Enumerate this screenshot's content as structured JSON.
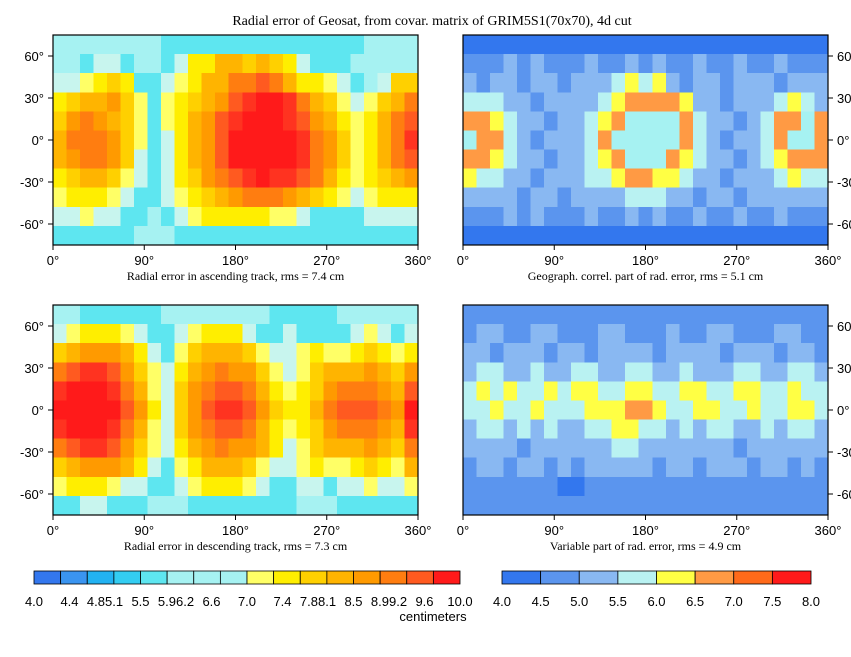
{
  "title": "Radial error of Geosat, from covar. matrix of GRIM5S1(70x70), 4d cut",
  "chart_data": [
    {
      "type": "heatmap",
      "caption": "Radial error in ascending track, rms = 7.4 cm",
      "scale": "A",
      "xlim": [
        0,
        360
      ],
      "ylim": [
        -75,
        75
      ],
      "x_ticks": [
        "0°",
        "90°",
        "180°",
        "270°",
        "360°"
      ],
      "y_ticks": [
        "60°",
        "30°",
        "0°",
        "-30°",
        "-60°"
      ],
      "y_axis_side": "left",
      "rows": [
        "HHHHHHHHIIIIIIIIIIIIIIIHHHH",
        "HHIJJIHHIJLLNNMNMLJIIIHHHHH",
        "JJKLMLIIJKLNNPPQPNLLKJIHJMM",
        "LMNNOMKIKLMNOQRSSRPNMKJKMNP",
        "MOPONMKIKLNOQRSSSRQONLKLNPQ",
        "NPPPOMKIJLNOQSSSSSRPOMKLNPR",
        "NOPPOMJIJLNOQSSSSSRPOMKLNPQ",
        "LMNNMKJIJLMOPQRSRRQPNLKLMNO",
        "KLLLKJIIJKLMNOPPPONMLKJKLLL",
        "JJKJJIIHIJKLLLLLKKJIIIIJJJJ",
        "IIIIIIHHHIIIIIIIIIIIIIIIIII"
      ]
    },
    {
      "type": "heatmap",
      "caption": "Geograph. correl. part of rad. error, rms = 5.1 cm",
      "scale": "B",
      "xlim": [
        0,
        360
      ],
      "ylim": [
        -75,
        75
      ],
      "x_ticks": [
        "0°",
        "90°",
        "180°",
        "270°",
        "360°"
      ],
      "y_ticks": [
        "60°",
        "30°",
        "0°",
        "-30°",
        "-60°"
      ],
      "y_axis_side": "right",
      "rows": [
        "BBBBBBBBBBBBBBBBBBBBBBBBBBB",
        "CCCDCDCCCDCCDCDCCDCCDCCDCCC",
        "DCDDCDDCDDDEFEFDCDDCDDDCDDD",
        "EEEDDCDDDDEFGGGGFDDCDDDEFED",
        "GGFEDDCDDEFGHHHHGEDDCDEGGHG",
        "HGGEDCDDDEGHHHHHGEDCDDEGHHG",
        "GGFEDDCDDEFGHHHGFEDDCDEFGGG",
        "FEEDDCDDDEEFGGFFEDDCDDDEFEE",
        "DDDDCDDCDDDDEEEDDCDDCDDDDDD",
        "CCCDCDCCCDCCDCDCCDCCDCCDCCC",
        "BBBBBBBBBBBBBBBBBBBBBBBBBBB"
      ]
    },
    {
      "type": "heatmap",
      "caption": "Radial error in descending track, rms = 7.3 cm",
      "scale": "A",
      "xlim": [
        0,
        360
      ],
      "ylim": [
        -75,
        75
      ],
      "x_ticks": [
        "0°",
        "90°",
        "180°",
        "270°",
        "360°"
      ],
      "y_ticks": [
        "60°",
        "30°",
        "0°",
        "-30°",
        "-60°"
      ],
      "y_axis_side": "left",
      "rows": [
        "HHIIIIIIHHHHHHHHIIIIIHHHHHH",
        "JKLLLKJIIJKLLLJIIJIIIIJKJIJ",
        "MNOOONLJIKMNNNMKJJKLKKLMLKL",
        "PQRRQOMKJLNOPOOMKJKMNNNONMO",
        "RSSSRPNKJMOPQQPNLKLMOPPPONQ",
        "SSSSSQOLJMOQRRQOMLLNPQQQPOS",
        "RSSSRPNKJMOPQQPNLKLMOPPPONR",
        "PQRRQOMKJLNOPOONLJKMNNNONMP",
        "MNOOONLJIKLNNNMKJJKLKKLMLKN",
        "KLLLKJJIIJKLLLKJIIJJIJJKJJK",
        "IIJJIIIHHHIIIIIIIIHHHIIIIII"
      ]
    },
    {
      "type": "heatmap",
      "caption": "Variable part of rad. error, rms = 4.9 cm",
      "scale": "B",
      "xlim": [
        0,
        360
      ],
      "ylim": [
        -75,
        75
      ],
      "x_ticks": [
        "0°",
        "90°",
        "180°",
        "270°",
        "360°"
      ],
      "y_ticks": [
        "60°",
        "30°",
        "0°",
        "-30°",
        "-60°"
      ],
      "y_axis_side": "right",
      "rows": [
        "CCCCCCCCCCCCCCCCCCCCCCCCCCC",
        "CDDCCDDCCCDDCCCDCCDDCCCDDCC",
        "DDCDDDCDDCDDDDCDDDDCDDDCDDC",
        "DEEDDEDDEEDDEEDDEDDDEEDDEED",
        "EFEFEEFEFFEEFFEEFFEEFFEEFEE",
        "EEFEEFEEEFFFGGFEEFFEEFEEFFE",
        "DEEDEDEDDEEFFEEDEDEEDDEDEED",
        "DDDDCDDDDDDEEDDDDDDDCDDDDDD",
        "CDDCDDCDCDDDDDCDDCDDDCDDCDC",
        "CCCCCCCBBCCCCCCCCCCCCCCCCCC",
        "CCCCCCCCCCCCCCCCCCCCCCCCCCC"
      ]
    }
  ],
  "colorbar_left": {
    "colors": [
      "#3377ee",
      "#3a94f0",
      "#22b2f2",
      "#33cdf2",
      "#5ee6f0",
      "#a6f2f2",
      "#a6f2f2",
      "#a6f2f2",
      "#ffff66",
      "#ffee00",
      "#ffd000",
      "#ffb400",
      "#ff9a00",
      "#ff7d10",
      "#ff5a20",
      "#ff1a1a"
    ],
    "labels": [
      "4.0",
      "4.4",
      "4.85.1",
      "5.5",
      "5.96.2",
      "6.6",
      "7.0",
      "7.4",
      "7.88.1",
      "8.5",
      "8.99.2",
      "9.6",
      "10.0"
    ],
    "units": "centimeters"
  },
  "colorbar_right": {
    "colors": [
      "#3377ee",
      "#5b95ee",
      "#89b8f2",
      "#b9f2f2",
      "#ffff44",
      "#ff9a44",
      "#ff6a1a",
      "#ff1a1a"
    ],
    "labels": [
      "4.0",
      "4.5",
      "5.0",
      "5.5",
      "6.0",
      "6.5",
      "7.0",
      "7.5",
      "8.0"
    ]
  },
  "palette": {
    "B": "#3377ee",
    "C": "#5b95ee",
    "D": "#89b8f2",
    "E": "#b9f2f2",
    "F": "#ffff44",
    "G": "#ff9a44",
    "H": "#a6f2f2",
    "I": "#5ee6f0",
    "J": "#c8f5ee",
    "K": "#ffff66",
    "L": "#ffee00",
    "M": "#ffd000",
    "N": "#ffb400",
    "O": "#ff9a00",
    "P": "#ff7d10",
    "Q": "#ff5a20",
    "R": "#ff3320",
    "S": "#ff1a1a"
  }
}
